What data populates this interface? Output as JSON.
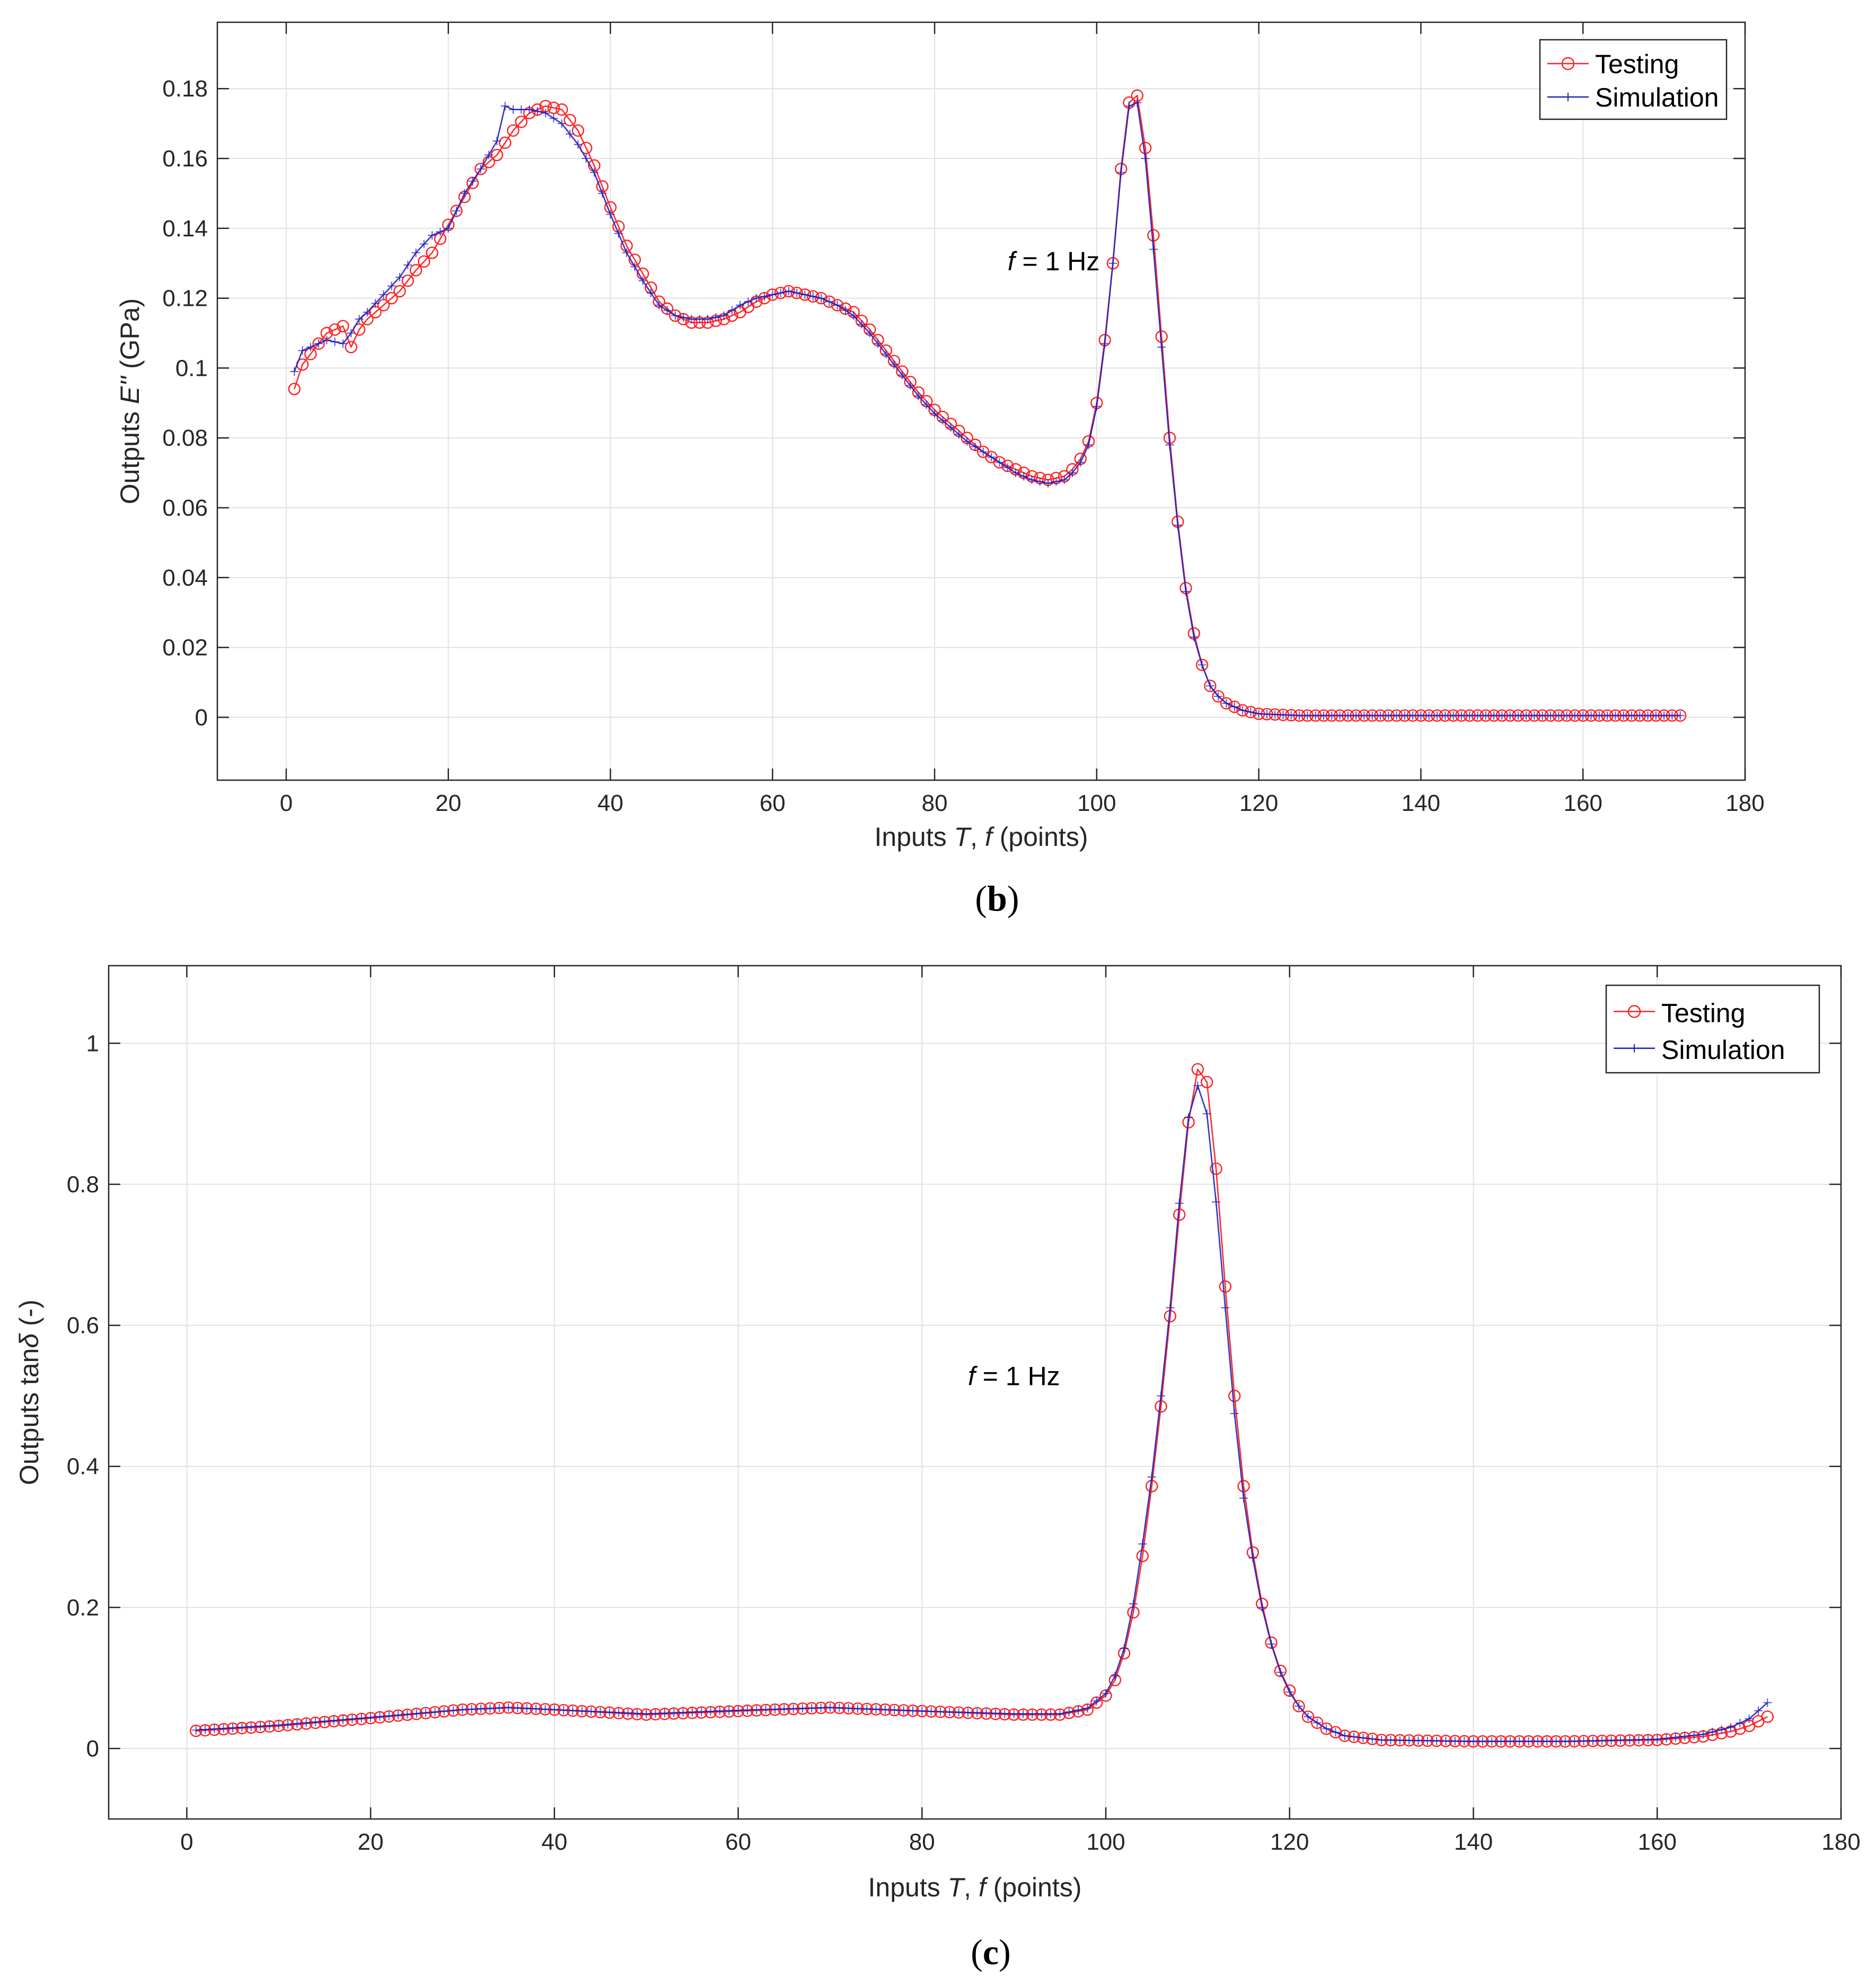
{
  "colors": {
    "testing": "#ff2020",
    "simulation": "#2020c0",
    "grid": "#e2e2e2",
    "axis": "#262626"
  },
  "chart_data": [
    {
      "type": "line",
      "panel": "b",
      "caption_letter": "b",
      "caption_open": "(",
      "caption_close": ")",
      "annotation": {
        "italic": "f",
        "rest": " = 1 Hz",
        "at_x": 89,
        "at_y": 0.128
      },
      "xlabel": {
        "prefix": "Inputs ",
        "var1": "T",
        "sep": ", ",
        "var2": "f",
        "suffix": " (points)"
      },
      "ylabel": {
        "prefix": "Outputs ",
        "var": "E''",
        "suffix": " (GPa)"
      },
      "xlim": [
        -8.5,
        180
      ],
      "ylim": [
        -0.018,
        0.199
      ],
      "xticks": [
        0,
        20,
        40,
        60,
        80,
        100,
        120,
        140,
        160,
        180
      ],
      "xtick_labels": [
        "0",
        "20",
        "40",
        "60",
        "80",
        "100",
        "120",
        "140",
        "160",
        "180"
      ],
      "yticks": [
        0,
        0.02,
        0.04,
        0.06,
        0.08,
        0.1,
        0.12,
        0.14,
        0.16,
        0.18
      ],
      "ytick_labels": [
        "0",
        "0.02",
        "0.04",
        "0.06",
        "0.08",
        "0.1",
        "0.12",
        "0.14",
        "0.16",
        "0.18"
      ],
      "legend": {
        "placement": "top-right",
        "entries": [
          "Testing",
          "Simulation"
        ]
      },
      "series": [
        {
          "name": "Testing",
          "marker": "o",
          "anchors_x": [
            1,
            2,
            3,
            4,
            5,
            6,
            7,
            8,
            9,
            10,
            12,
            14,
            16,
            18,
            20,
            22,
            24,
            26,
            28,
            30,
            32,
            34,
            36,
            38,
            40,
            42,
            44,
            46,
            48,
            50,
            52,
            54,
            56,
            58,
            60,
            62,
            64,
            66,
            68,
            70,
            72,
            74,
            76,
            78,
            80,
            82,
            84,
            86,
            88,
            90,
            92,
            94,
            96,
            97,
            98,
            99,
            100,
            101,
            102,
            103,
            104,
            105,
            106,
            107,
            108,
            109,
            110,
            111,
            112,
            113,
            114,
            115,
            116,
            118,
            120,
            125,
            172
          ],
          "anchors_y": [
            0.094,
            0.101,
            0.104,
            0.107,
            0.11,
            0.111,
            0.112,
            0.106,
            0.111,
            0.114,
            0.118,
            0.122,
            0.128,
            0.133,
            0.141,
            0.149,
            0.157,
            0.161,
            0.168,
            0.173,
            0.175,
            0.174,
            0.168,
            0.158,
            0.146,
            0.135,
            0.127,
            0.119,
            0.115,
            0.113,
            0.113,
            0.114,
            0.116,
            0.119,
            0.121,
            0.122,
            0.121,
            0.12,
            0.118,
            0.116,
            0.111,
            0.105,
            0.099,
            0.093,
            0.088,
            0.084,
            0.08,
            0.076,
            0.073,
            0.071,
            0.069,
            0.068,
            0.069,
            0.071,
            0.074,
            0.079,
            0.09,
            0.108,
            0.13,
            0.157,
            0.176,
            0.178,
            0.163,
            0.138,
            0.109,
            0.08,
            0.056,
            0.037,
            0.024,
            0.015,
            0.009,
            0.006,
            0.004,
            0.002,
            0.001,
            0.0005,
            0.0005
          ],
          "n_points": 172
        },
        {
          "name": "Simulation",
          "marker": "+",
          "anchors_x": [
            1,
            2,
            3,
            5,
            7,
            8,
            9,
            10,
            12,
            14,
            16,
            18,
            20,
            22,
            24,
            26,
            27,
            28,
            30,
            32,
            34,
            36,
            38,
            40,
            42,
            44,
            46,
            48,
            50,
            52,
            54,
            56,
            58,
            60,
            62,
            64,
            66,
            68,
            70,
            72,
            74,
            76,
            78,
            80,
            82,
            84,
            86,
            88,
            90,
            92,
            94,
            96,
            97,
            98,
            99,
            100,
            101,
            102,
            103,
            104,
            105,
            106,
            107,
            108,
            109,
            110,
            111,
            112,
            113,
            114,
            115,
            116,
            118,
            120,
            125,
            172
          ],
          "anchors_y": [
            0.099,
            0.105,
            0.106,
            0.108,
            0.107,
            0.11,
            0.114,
            0.116,
            0.121,
            0.126,
            0.133,
            0.138,
            0.14,
            0.15,
            0.157,
            0.165,
            0.175,
            0.174,
            0.174,
            0.173,
            0.17,
            0.164,
            0.156,
            0.144,
            0.133,
            0.125,
            0.118,
            0.115,
            0.114,
            0.114,
            0.115,
            0.118,
            0.12,
            0.121,
            0.122,
            0.121,
            0.12,
            0.118,
            0.115,
            0.11,
            0.104,
            0.098,
            0.092,
            0.087,
            0.083,
            0.079,
            0.076,
            0.073,
            0.07,
            0.068,
            0.067,
            0.068,
            0.07,
            0.073,
            0.078,
            0.089,
            0.107,
            0.13,
            0.156,
            0.175,
            0.176,
            0.16,
            0.134,
            0.106,
            0.078,
            0.055,
            0.036,
            0.023,
            0.015,
            0.009,
            0.006,
            0.004,
            0.002,
            0.001,
            0.0005,
            0.0005
          ],
          "n_points": 172
        }
      ]
    },
    {
      "type": "line",
      "panel": "c",
      "caption_letter": "c",
      "caption_open": "(",
      "caption_close": ")",
      "annotation": {
        "italic": "f",
        "rest": " = 1 Hz",
        "at_x": 85,
        "at_y": 0.515
      },
      "xlabel": {
        "prefix": "Inputs ",
        "var1": "T",
        "sep": ", ",
        "var2": "f",
        "suffix": " (points)"
      },
      "ylabel": {
        "prefix": "Outputs tan",
        "var": "δ",
        "suffix": " (-)"
      },
      "xlim": [
        -8.5,
        180
      ],
      "ylim": [
        -0.1,
        1.11
      ],
      "xticks": [
        0,
        20,
        40,
        60,
        80,
        100,
        120,
        140,
        160,
        180
      ],
      "xtick_labels": [
        "0",
        "20",
        "40",
        "60",
        "80",
        "100",
        "120",
        "140",
        "160",
        "180"
      ],
      "yticks": [
        0,
        0.2,
        0.4,
        0.6,
        0.8,
        1
      ],
      "ytick_labels": [
        "0",
        "0.2",
        "0.4",
        "0.6",
        "0.8",
        "1"
      ],
      "legend": {
        "placement": "top-right",
        "entries": [
          "Testing",
          "Simulation"
        ]
      },
      "series": [
        {
          "name": "Testing",
          "marker": "o",
          "anchors_x": [
            1,
            10,
            20,
            30,
            35,
            40,
            50,
            60,
            70,
            80,
            90,
            95,
            98,
            100,
            101,
            102,
            103,
            104,
            105,
            106,
            107,
            108,
            109,
            110,
            111,
            112,
            113,
            114,
            115,
            116,
            117,
            118,
            119,
            120,
            121,
            122,
            124,
            126,
            130,
            140,
            150,
            160,
            165,
            168,
            170,
            172
          ],
          "anchors_y": [
            0.025,
            0.032,
            0.043,
            0.055,
            0.058,
            0.055,
            0.048,
            0.053,
            0.058,
            0.053,
            0.048,
            0.048,
            0.055,
            0.075,
            0.097,
            0.135,
            0.193,
            0.273,
            0.372,
            0.485,
            0.613,
            0.757,
            0.888,
            0.963,
            0.945,
            0.822,
            0.655,
            0.5,
            0.372,
            0.278,
            0.205,
            0.15,
            0.11,
            0.082,
            0.06,
            0.045,
            0.028,
            0.018,
            0.012,
            0.01,
            0.01,
            0.012,
            0.017,
            0.024,
            0.032,
            0.045
          ],
          "n_points": 172
        },
        {
          "name": "Simulation",
          "marker": "+",
          "anchors_x": [
            1,
            10,
            20,
            30,
            35,
            40,
            50,
            60,
            70,
            80,
            90,
            95,
            98,
            100,
            101,
            102,
            103,
            104,
            105,
            106,
            107,
            108,
            109,
            110,
            111,
            112,
            113,
            114,
            115,
            116,
            117,
            118,
            119,
            120,
            121,
            122,
            124,
            126,
            130,
            140,
            150,
            160,
            165,
            168,
            170,
            172
          ],
          "anchors_y": [
            0.026,
            0.033,
            0.044,
            0.055,
            0.058,
            0.055,
            0.049,
            0.054,
            0.058,
            0.053,
            0.049,
            0.049,
            0.057,
            0.078,
            0.103,
            0.142,
            0.205,
            0.29,
            0.385,
            0.5,
            0.625,
            0.773,
            0.895,
            0.94,
            0.9,
            0.775,
            0.625,
            0.475,
            0.355,
            0.27,
            0.2,
            0.148,
            0.108,
            0.08,
            0.06,
            0.045,
            0.028,
            0.018,
            0.012,
            0.01,
            0.01,
            0.013,
            0.02,
            0.03,
            0.042,
            0.065
          ],
          "n_points": 172
        }
      ]
    }
  ]
}
